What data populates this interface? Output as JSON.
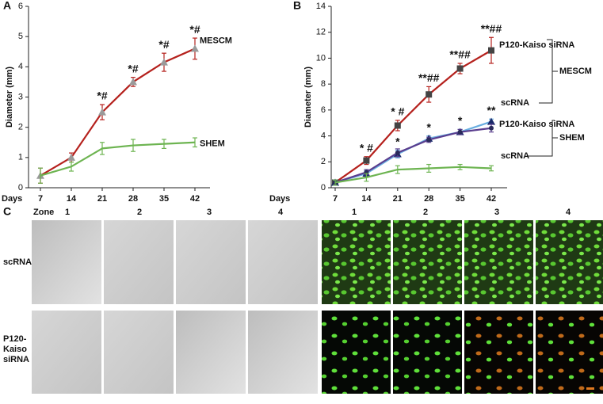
{
  "chart_data": [
    {
      "type": "line",
      "label": "A",
      "ylabel": "Diameter (mm)",
      "xlabel": "Days",
      "categories": [
        "7",
        "14",
        "21",
        "28",
        "35",
        "42"
      ],
      "ylim": [
        0,
        6
      ],
      "yticks": [
        0,
        1,
        2,
        3,
        4,
        5,
        6
      ],
      "series": [
        {
          "name": "MESCM",
          "color": "#b5211d",
          "marker": "triangle",
          "marker_color": "#9a9a9a",
          "values": [
            0.4,
            1.0,
            2.5,
            3.5,
            4.15,
            4.6
          ],
          "errors": [
            0.25,
            0.15,
            0.25,
            0.15,
            0.3,
            0.35
          ],
          "significance": [
            null,
            null,
            "*#",
            "*#",
            "*#",
            "*#"
          ]
        },
        {
          "name": "SHEM",
          "color": "#6db451",
          "marker": "none",
          "marker_color": "#6db451",
          "values": [
            0.4,
            0.7,
            1.3,
            1.4,
            1.45,
            1.5
          ],
          "errors": [
            0.25,
            0.15,
            0.2,
            0.2,
            0.15,
            0.15
          ]
        }
      ]
    },
    {
      "type": "line",
      "label": "B",
      "ylabel": "Diameter (mm)",
      "xlabel": "Days",
      "categories": [
        "7",
        "14",
        "21",
        "28",
        "35",
        "42"
      ],
      "ylim": [
        0,
        14
      ],
      "yticks": [
        0,
        2,
        4,
        6,
        8,
        10,
        12,
        14
      ],
      "series": [
        {
          "name": "P120-Kaiso siRNA",
          "group": "MESCM",
          "color": "#b5211d",
          "marker": "square",
          "marker_color": "#444444",
          "values": [
            0.4,
            2.1,
            4.8,
            7.2,
            9.2,
            10.6
          ],
          "errors": [
            0.2,
            0.3,
            0.4,
            0.6,
            0.4,
            1.0
          ],
          "significance": [
            null,
            "* #",
            "* #",
            "**##",
            "**##",
            "**##"
          ]
        },
        {
          "name": "scRNA",
          "group": "MESCM",
          "color": "#6aaee0",
          "marker": "triangle",
          "marker_color": "#1a2a6a",
          "values": [
            0.4,
            1.1,
            2.6,
            3.8,
            4.3,
            5.1
          ],
          "errors": [
            0.2,
            0.2,
            0.3,
            0.2,
            0.2,
            0.2
          ],
          "significance": [
            null,
            null,
            "*",
            "*",
            "*",
            "**"
          ]
        },
        {
          "name": "P120-Kaiso siRNA",
          "group": "SHEM",
          "color": "#5a3d8e",
          "marker": "circle",
          "marker_color": "#2a2a5a",
          "values": [
            0.4,
            1.2,
            2.7,
            3.7,
            4.3,
            4.6
          ],
          "errors": [
            0.2,
            0.2,
            0.3,
            0.2,
            0.2,
            0.3
          ]
        },
        {
          "name": "scRNA",
          "group": "SHEM",
          "color": "#6db451",
          "marker": "none",
          "marker_color": "#6db451",
          "values": [
            0.4,
            0.8,
            1.4,
            1.5,
            1.6,
            1.5
          ],
          "errors": [
            0.2,
            0.3,
            0.3,
            0.3,
            0.2,
            0.2
          ]
        }
      ]
    }
  ],
  "panel_c": {
    "label": "C",
    "zone_header": "Zone",
    "zones": [
      "1",
      "2",
      "3",
      "4"
    ],
    "rows": [
      [
        "scRNA"
      ],
      [
        "P120-",
        "Kaiso",
        "siRNA"
      ]
    ]
  }
}
